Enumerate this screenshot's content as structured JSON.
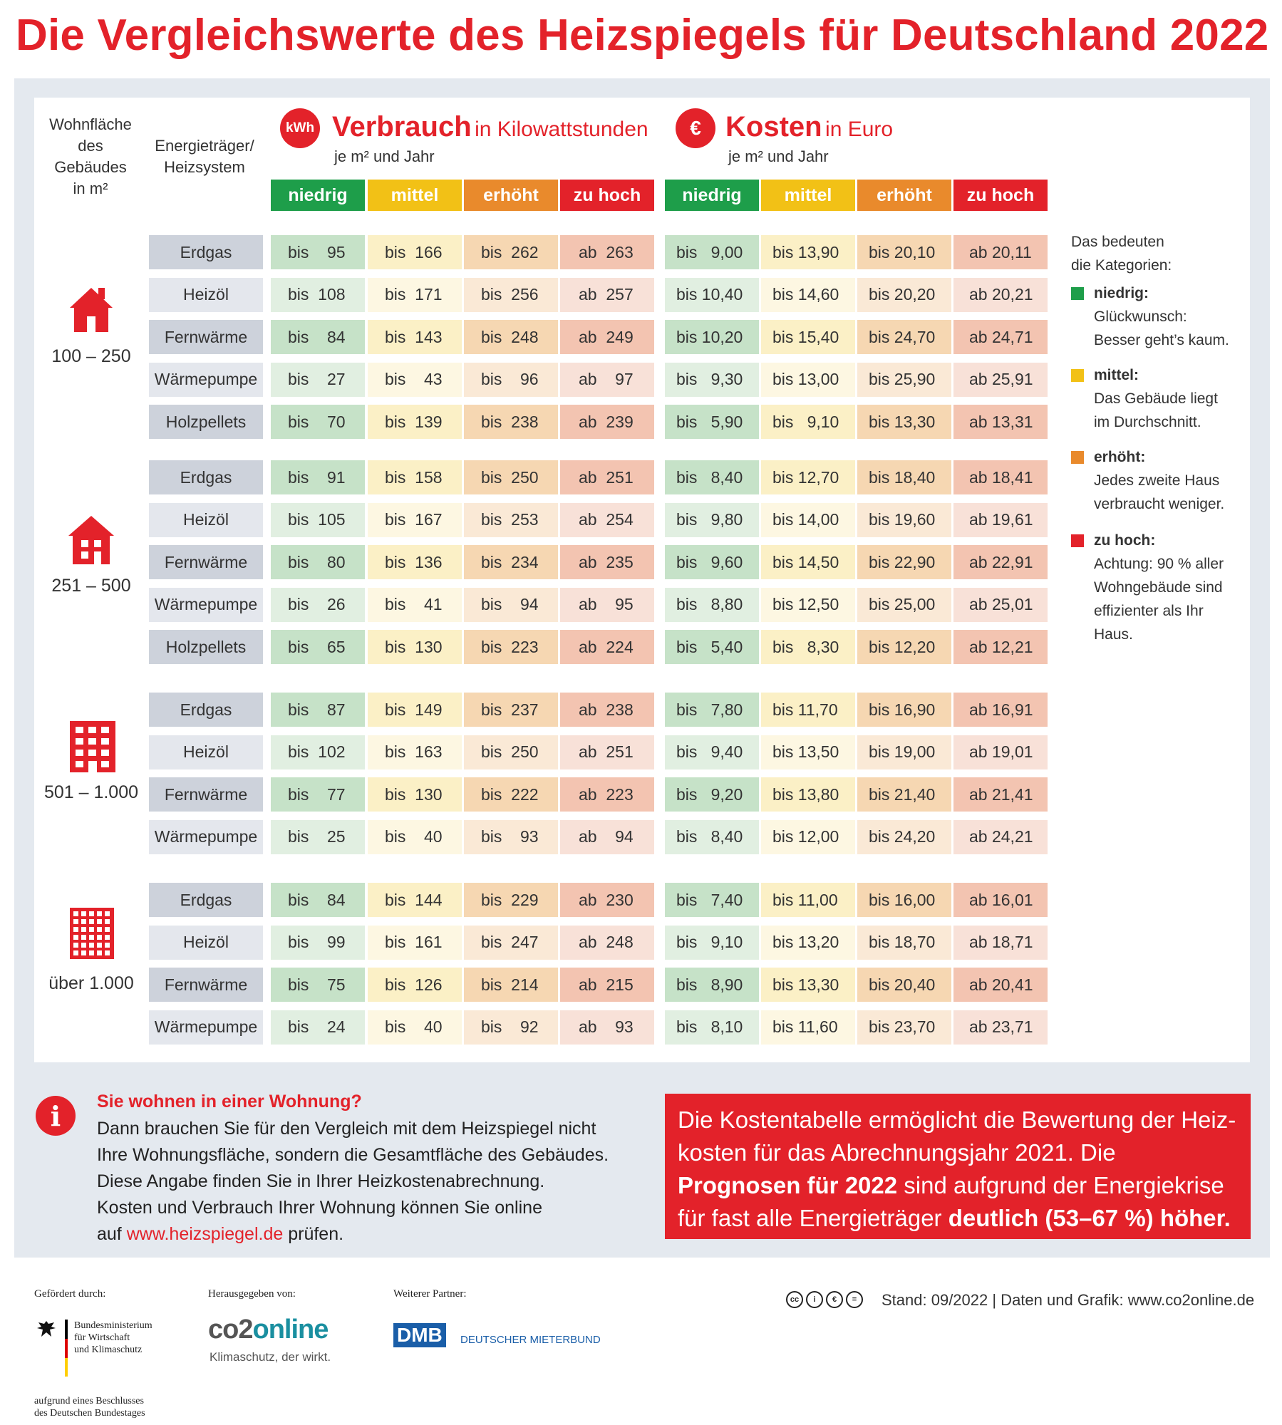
{
  "title": "Die Vergleichswerte des Heizspiegels für Deutschland 2022",
  "header": {
    "area_col": [
      "Wohnfläche",
      "des",
      "Gebäudes",
      "in m²"
    ],
    "carrier_col": [
      "Energieträger/",
      "Heizsystem"
    ],
    "verbrauch": {
      "badge": "kWh",
      "bold": "Verbrauch",
      "rest": "in Kilowattstunden",
      "unit": "je m² und Jahr"
    },
    "kosten": {
      "badge": "€",
      "bold": "Kosten",
      "rest": "in Euro",
      "unit": "je m² und Jahr"
    },
    "categories": [
      "niedrig",
      "mittel",
      "erhöht",
      "zu hoch"
    ]
  },
  "colors": {
    "red": "#e3222a",
    "cat_header": [
      "#1e9e4a",
      "#f2c116",
      "#e98a2c",
      "#e3222a"
    ],
    "cat_fill": [
      "#c6e2c8",
      "#fbf0c6",
      "#f6d7b2",
      "#f3c4b1"
    ],
    "cat_fill_light": [
      "#e1efe1",
      "#fdf7e2",
      "#fae9d6",
      "#f8e1d8"
    ]
  },
  "groups": [
    {
      "area": "100 – 250",
      "icon": "small-house-icon",
      "rows": [
        {
          "carrier": "Erdgas",
          "verbrauch": [
            "bis    95",
            "bis  166",
            "bis  262",
            "ab  263"
          ],
          "kosten": [
            "bis   9,00",
            "bis 13,90",
            "bis 20,10",
            "ab 20,11"
          ]
        },
        {
          "carrier": "Heizöl",
          "verbrauch": [
            "bis  108",
            "bis  171",
            "bis  256",
            "ab  257"
          ],
          "kosten": [
            "bis 10,40",
            "bis 14,60",
            "bis 20,20",
            "ab 20,21"
          ]
        },
        {
          "carrier": "Fernwärme",
          "verbrauch": [
            "bis    84",
            "bis  143",
            "bis  248",
            "ab  249"
          ],
          "kosten": [
            "bis 10,20",
            "bis 15,40",
            "bis 24,70",
            "ab 24,71"
          ]
        },
        {
          "carrier": "Wärmepumpe",
          "verbrauch": [
            "bis    27",
            "bis    43",
            "bis    96",
            "ab    97"
          ],
          "kosten": [
            "bis   9,30",
            "bis 13,00",
            "bis 25,90",
            "ab 25,91"
          ]
        },
        {
          "carrier": "Holzpellets",
          "verbrauch": [
            "bis    70",
            "bis  139",
            "bis  238",
            "ab  239"
          ],
          "kosten": [
            "bis   5,90",
            "bis   9,10",
            "bis 13,30",
            "ab 13,31"
          ]
        }
      ]
    },
    {
      "area": "251 – 500",
      "icon": "medium-house-icon",
      "rows": [
        {
          "carrier": "Erdgas",
          "verbrauch": [
            "bis    91",
            "bis  158",
            "bis  250",
            "ab  251"
          ],
          "kosten": [
            "bis   8,40",
            "bis 12,70",
            "bis 18,40",
            "ab 18,41"
          ]
        },
        {
          "carrier": "Heizöl",
          "verbrauch": [
            "bis  105",
            "bis  167",
            "bis  253",
            "ab  254"
          ],
          "kosten": [
            "bis   9,80",
            "bis 14,00",
            "bis 19,60",
            "ab 19,61"
          ]
        },
        {
          "carrier": "Fernwärme",
          "verbrauch": [
            "bis    80",
            "bis  136",
            "bis  234",
            "ab  235"
          ],
          "kosten": [
            "bis   9,60",
            "bis 14,50",
            "bis 22,90",
            "ab 22,91"
          ]
        },
        {
          "carrier": "Wärmepumpe",
          "verbrauch": [
            "bis    26",
            "bis    41",
            "bis    94",
            "ab    95"
          ],
          "kosten": [
            "bis   8,80",
            "bis 12,50",
            "bis 25,00",
            "ab 25,01"
          ]
        },
        {
          "carrier": "Holzpellets",
          "verbrauch": [
            "bis    65",
            "bis  130",
            "bis  223",
            "ab  224"
          ],
          "kosten": [
            "bis   5,40",
            "bis   8,30",
            "bis 12,20",
            "ab 12,21"
          ]
        }
      ]
    },
    {
      "area": "501 – 1.000",
      "icon": "apartment-building-icon",
      "rows": [
        {
          "carrier": "Erdgas",
          "verbrauch": [
            "bis    87",
            "bis  149",
            "bis  237",
            "ab  238"
          ],
          "kosten": [
            "bis   7,80",
            "bis 11,70",
            "bis 16,90",
            "ab 16,91"
          ]
        },
        {
          "carrier": "Heizöl",
          "verbrauch": [
            "bis  102",
            "bis  163",
            "bis  250",
            "ab  251"
          ],
          "kosten": [
            "bis   9,40",
            "bis 13,50",
            "bis 19,00",
            "ab 19,01"
          ]
        },
        {
          "carrier": "Fernwärme",
          "verbrauch": [
            "bis    77",
            "bis  130",
            "bis  222",
            "ab  223"
          ],
          "kosten": [
            "bis   9,20",
            "bis 13,80",
            "bis 21,40",
            "ab 21,41"
          ]
        },
        {
          "carrier": "Wärmepumpe",
          "verbrauch": [
            "bis    25",
            "bis    40",
            "bis    93",
            "ab    94"
          ],
          "kosten": [
            "bis   8,40",
            "bis 12,00",
            "bis 24,20",
            "ab 24,21"
          ]
        }
      ]
    },
    {
      "area": "über 1.000",
      "icon": "high-rise-building-icon",
      "rows": [
        {
          "carrier": "Erdgas",
          "verbrauch": [
            "bis    84",
            "bis  144",
            "bis  229",
            "ab  230"
          ],
          "kosten": [
            "bis   7,40",
            "bis 11,00",
            "bis 16,00",
            "ab 16,01"
          ]
        },
        {
          "carrier": "Heizöl",
          "verbrauch": [
            "bis    99",
            "bis  161",
            "bis  247",
            "ab  248"
          ],
          "kosten": [
            "bis   9,10",
            "bis 13,20",
            "bis 18,70",
            "ab 18,71"
          ]
        },
        {
          "carrier": "Fernwärme",
          "verbrauch": [
            "bis    75",
            "bis  126",
            "bis  214",
            "ab  215"
          ],
          "kosten": [
            "bis   8,90",
            "bis 13,30",
            "bis 20,40",
            "ab 20,41"
          ]
        },
        {
          "carrier": "Wärmepumpe",
          "verbrauch": [
            "bis    24",
            "bis    40",
            "bis    92",
            "ab    93"
          ],
          "kosten": [
            "bis   8,10",
            "bis 11,60",
            "bis 23,70",
            "ab 23,71"
          ]
        }
      ]
    }
  ],
  "legend": {
    "intro": [
      "Das bedeuten",
      "die Kategorien:"
    ],
    "items": [
      {
        "label": "niedrig:",
        "text": [
          "Glückwunsch:",
          "Besser geht’s kaum."
        ]
      },
      {
        "label": "mittel:",
        "text": [
          "Das Gebäude liegt",
          "im Durchschnitt."
        ]
      },
      {
        "label": "erhöht:",
        "text": [
          "Jedes zweite Haus",
          "verbraucht weniger."
        ]
      },
      {
        "label": "zu hoch:",
        "text": [
          "Achtung: 90 % aller",
          "Wohngebäude sind",
          "effizienter als Ihr",
          "Haus."
        ]
      }
    ]
  },
  "info": {
    "icon": "i",
    "title": "Sie wohnen in einer Wohnung?",
    "lines": [
      "Dann brauchen Sie für den Vergleich mit dem Heizspiegel nicht",
      "Ihre Wohnungsfläche, sondern die Gesamtfläche des Gebäudes.",
      "Diese Angabe finden Sie in Ihrer Heizkostenabrechnung.",
      "Kosten und Verbrauch Ihrer Wohnung können Sie online"
    ],
    "last_pre": "auf ",
    "link": "www.heizspiegel.de",
    "last_post": " prüfen."
  },
  "notice": {
    "t1": "Die Kostentabelle ermöglicht die Bewertung der Heiz-",
    "t2": "kosten für das Abrechnungsjahr 2021. Die ",
    "b1": "Prognosen",
    "b2": "für 2022",
    "t3": " sind aufgrund der Energiekrise für fast alle",
    "t4": "Energieträger ",
    "b3": "deutlich (53–67 %) höher."
  },
  "footer": {
    "gefoerdert": "Gefördert durch:",
    "ministry": [
      "Bundesministerium",
      "für Wirtschaft",
      "und Klimaschutz"
    ],
    "beschluss": [
      "aufgrund eines Beschlusses",
      "des Deutschen Bundestages"
    ],
    "herausgegeben": "Herausgegeben von:",
    "co2_logo": "co2online",
    "co2_tagline": "Klimaschutz, der wirkt.",
    "partner": "Weiterer Partner:",
    "dmb_logo": "DMB",
    "dmb_text": "DEUTSCHER MIETERBUND",
    "stand": "Stand: 09/2022  |  Daten und Grafik: www.co2online.de",
    "license_icons": [
      "cc-icon",
      "by-icon",
      "nc-icon",
      "nd-icon"
    ]
  }
}
